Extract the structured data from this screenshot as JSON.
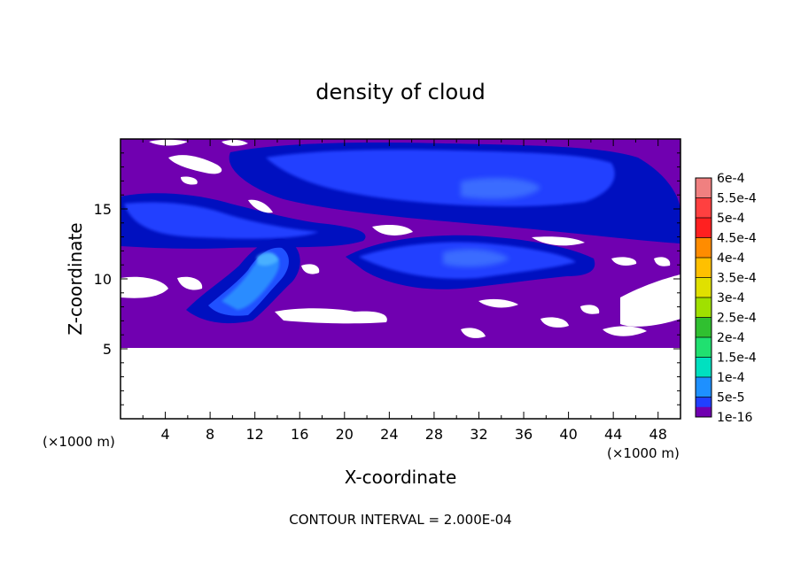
{
  "chart_data": {
    "type": "heatmap",
    "title": "density of cloud",
    "xlabel": "X-coordinate",
    "ylabel": "Z-coordinate",
    "x_unit_left": "(×1000 m)",
    "x_unit_right": "(×1000 m)",
    "xlim": [
      0,
      50
    ],
    "ylim": [
      0,
      20
    ],
    "x_ticks": [
      4,
      8,
      12,
      16,
      20,
      24,
      28,
      32,
      36,
      40,
      44,
      48
    ],
    "y_ticks": [
      5,
      10,
      15
    ],
    "footer": "CONTOUR INTERVAL = 2.000E-04",
    "colorbar": {
      "labels": [
        "6e-4",
        "5.5e-4",
        "5e-4",
        "4.5e-4",
        "4e-4",
        "3.5e-4",
        "3e-4",
        "2.5e-4",
        "2e-4",
        "1.5e-4",
        "1e-4",
        "5e-5",
        "1e-16"
      ],
      "colors": [
        "#f08080",
        "#ff4040",
        "#ff2020",
        "#ff8c00",
        "#ffc000",
        "#e0e000",
        "#a0e000",
        "#30c030",
        "#20e070",
        "#00e0c0",
        "#1e90ff",
        "#2040ff",
        "#0010c0"
      ],
      "bottom_color": "#7000b0"
    },
    "fields": {
      "background_color": "#7000b0",
      "empty_color": "#ffffff",
      "cloud_base_z": 5.2,
      "cloud_top_z": 19.6
    }
  }
}
